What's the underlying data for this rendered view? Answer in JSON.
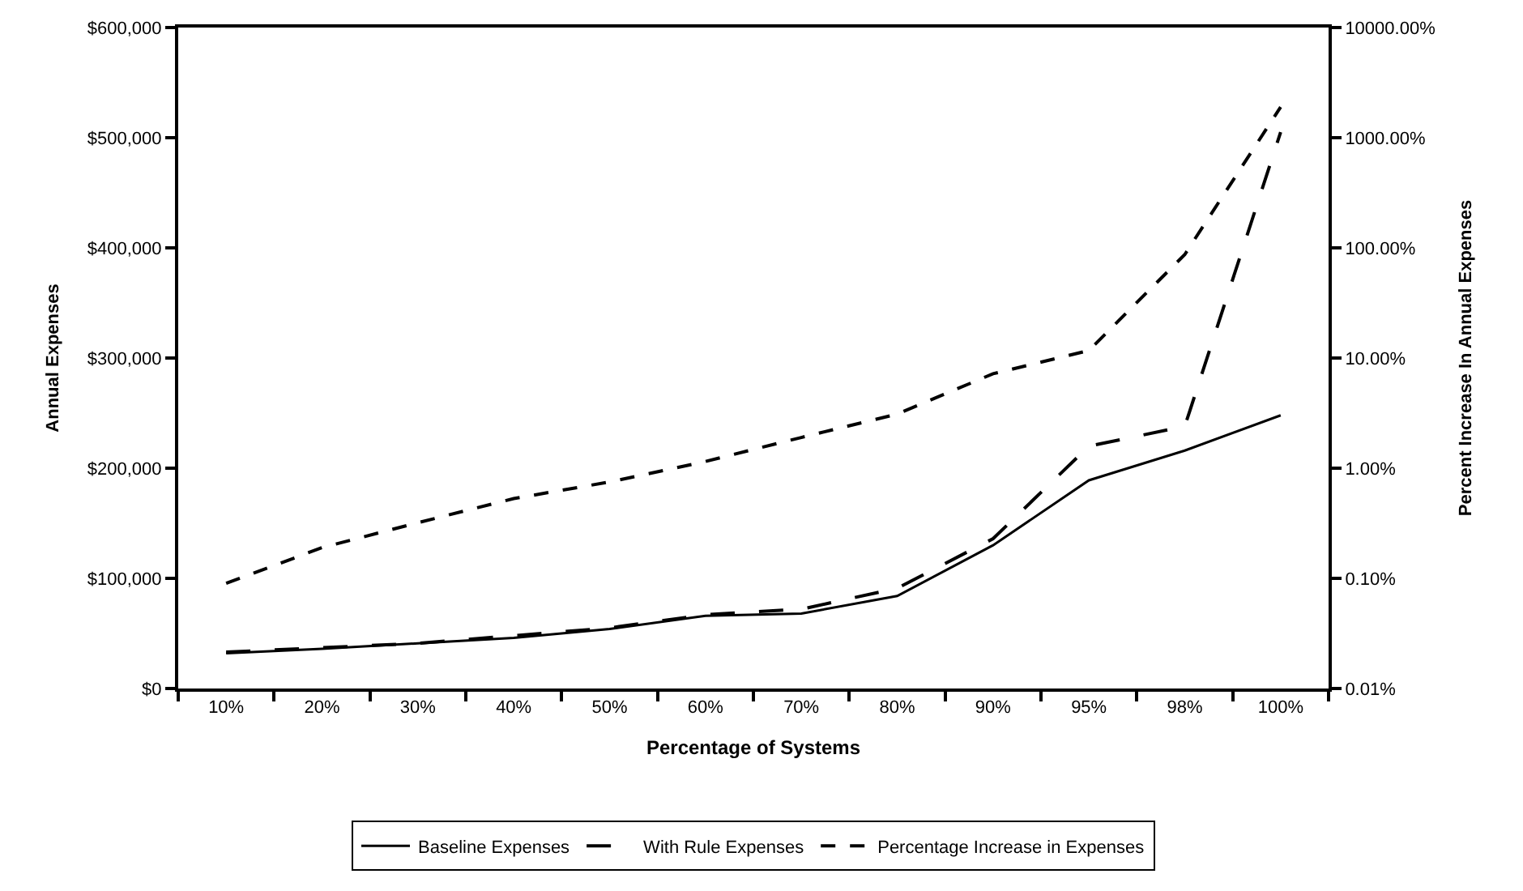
{
  "chart_data": {
    "type": "line",
    "xlabel": "Percentage of Systems",
    "ylabel": "Annual Expenses",
    "y2label": "Percent Increase In Annual Expenses",
    "categories": [
      "10%",
      "20%",
      "30%",
      "40%",
      "50%",
      "60%",
      "70%",
      "80%",
      "90%",
      "95%",
      "98%",
      "100%"
    ],
    "series": [
      {
        "name": "Baseline Expenses",
        "color": "#000000",
        "line_style": "solid",
        "values": [
          32000,
          36000,
          41000,
          46000,
          54000,
          66000,
          68000,
          84000,
          130000,
          189000,
          216000,
          248000
        ]
      },
      {
        "name": "With Rule Expenses",
        "color": "#000000",
        "line_style": "dashed",
        "values": [
          33000,
          37000,
          41000,
          48000,
          55000,
          67000,
          72000,
          91000,
          136000,
          220000,
          238000,
          505000
        ]
      },
      {
        "name": "Percentage Increase in Expenses",
        "color": "#000000",
        "line_style": "dotted",
        "axis": "y2",
        "values": [
          0.09,
          0.19,
          0.32,
          0.53,
          0.75,
          1.15,
          1.9,
          3.1,
          7.2,
          11.7,
          87,
          1900
        ]
      }
    ],
    "ylim": [
      0,
      600000
    ],
    "yticks": [
      {
        "value": 0,
        "label": "$0"
      },
      {
        "value": 100000,
        "label": "$100,000"
      },
      {
        "value": 200000,
        "label": "$200,000"
      },
      {
        "value": 300000,
        "label": "$300,000"
      },
      {
        "value": 400000,
        "label": "$400,000"
      },
      {
        "value": 500000,
        "label": "$500,000"
      },
      {
        "value": 600000,
        "label": "$600,000"
      }
    ],
    "y2lim": [
      0.01,
      10000
    ],
    "y2ticks": [
      {
        "value": 0.01,
        "label": "0.01%"
      },
      {
        "value": 0.1,
        "label": "0.10%"
      },
      {
        "value": 1,
        "label": "1.00%"
      },
      {
        "value": 10,
        "label": "10.00%"
      },
      {
        "value": 100,
        "label": "100.00%"
      },
      {
        "value": 1000,
        "label": "1000.00%"
      },
      {
        "value": 10000,
        "label": "10000.00%"
      }
    ],
    "log": "y2",
    "legend": "bottom",
    "marker": "none"
  }
}
